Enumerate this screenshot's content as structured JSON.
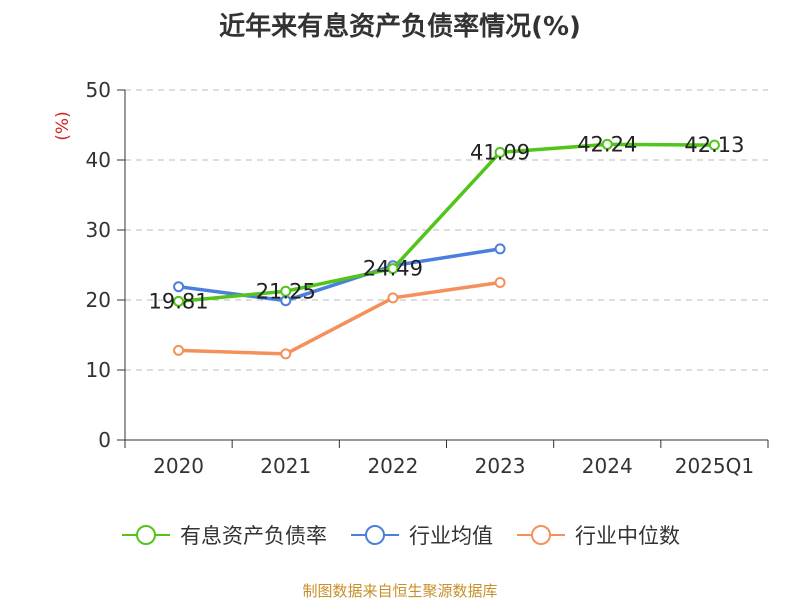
{
  "chart_data": {
    "type": "line",
    "title": "近年来有息资产负债率情况(%)",
    "ylabel": "(%)",
    "xlabel": "",
    "categories": [
      "2020",
      "2021",
      "2022",
      "2023",
      "2024",
      "2025Q1"
    ],
    "ylim": [
      0,
      50
    ],
    "yticks": [
      0,
      10,
      20,
      30,
      40,
      50
    ],
    "grid": "horizontal dashed",
    "legend_position": "bottom",
    "series": [
      {
        "name": "有息资产负债率",
        "color": "#52c41a",
        "values": [
          19.81,
          21.25,
          24.49,
          41.09,
          42.24,
          42.13
        ],
        "labels": [
          "19.81",
          "21.25",
          "24.49",
          "41.09",
          "42.24",
          "42.13"
        ]
      },
      {
        "name": "行业均值",
        "color": "#4a7fdc",
        "values": [
          21.9,
          19.9,
          24.9,
          27.3,
          null,
          null
        ]
      },
      {
        "name": "行业中位数",
        "color": "#f5905a",
        "values": [
          12.8,
          12.3,
          20.3,
          22.5,
          null,
          null
        ]
      }
    ],
    "source_note": "制图数据来自恒生聚源数据库"
  }
}
